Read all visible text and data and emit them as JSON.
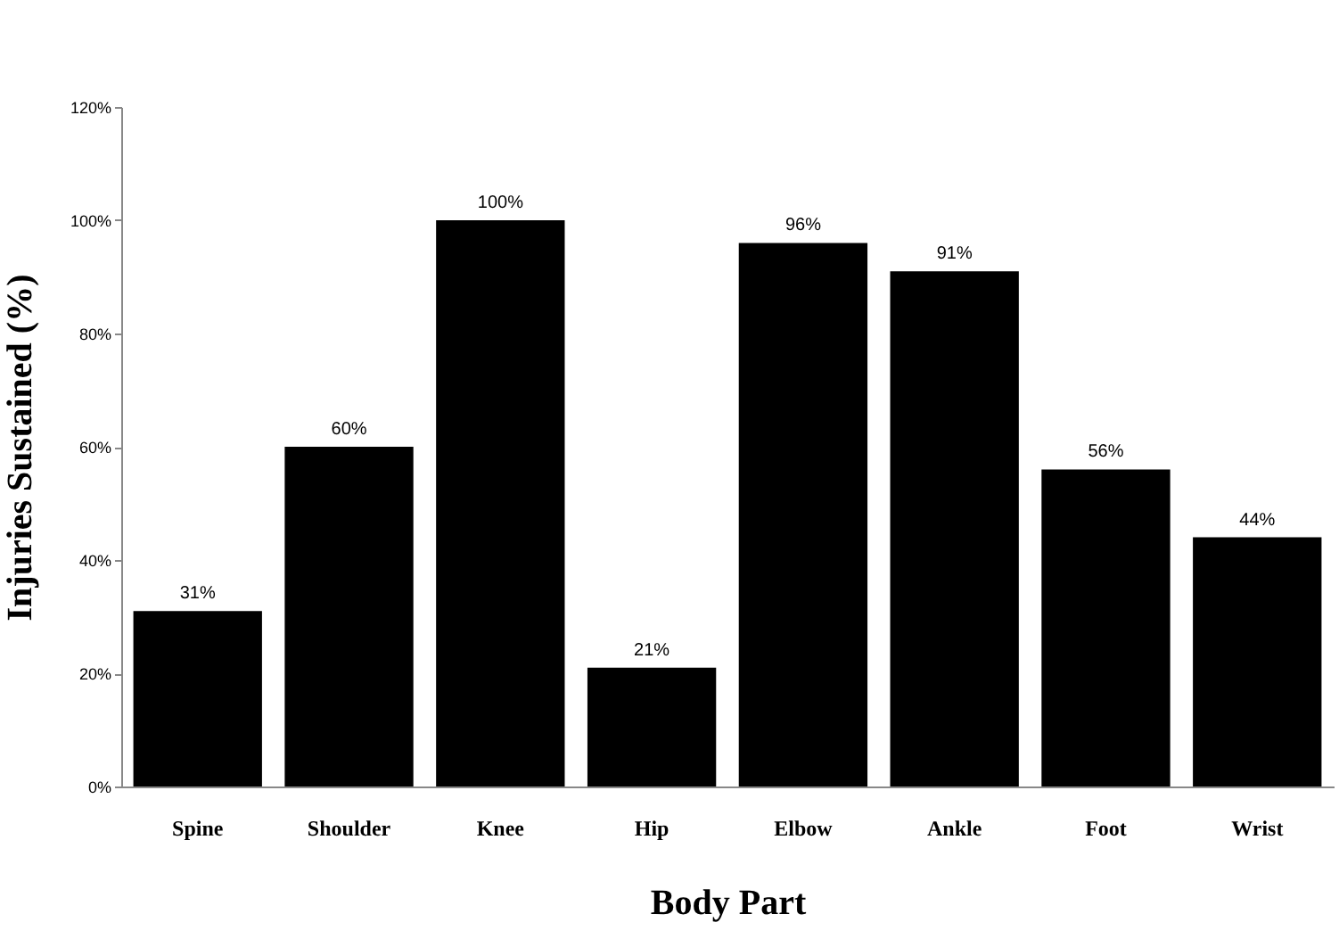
{
  "chart_data": {
    "type": "bar",
    "xlabel": "Body Part",
    "ylabel": "Injuries Sustained (%)",
    "categories": [
      "Spine",
      "Shoulder",
      "Knee",
      "Hip",
      "Elbow",
      "Ankle",
      "Foot",
      "Wrist"
    ],
    "values": [
      31,
      60,
      100,
      21,
      96,
      91,
      56,
      44
    ],
    "value_labels": [
      "31%",
      "60%",
      "100%",
      "21%",
      "96%",
      "91%",
      "56%",
      "44%"
    ],
    "color": "#000000",
    "ylim": [
      0,
      120
    ],
    "yticks": [
      {
        "value": 0,
        "label": "0%"
      },
      {
        "value": 20,
        "label": "20%"
      },
      {
        "value": 40,
        "label": "40%"
      },
      {
        "value": 60,
        "label": "60%"
      },
      {
        "value": 80,
        "label": "80%"
      },
      {
        "value": 100,
        "label": "100%"
      },
      {
        "value": 120,
        "label": "120%"
      }
    ],
    "grid": false
  }
}
